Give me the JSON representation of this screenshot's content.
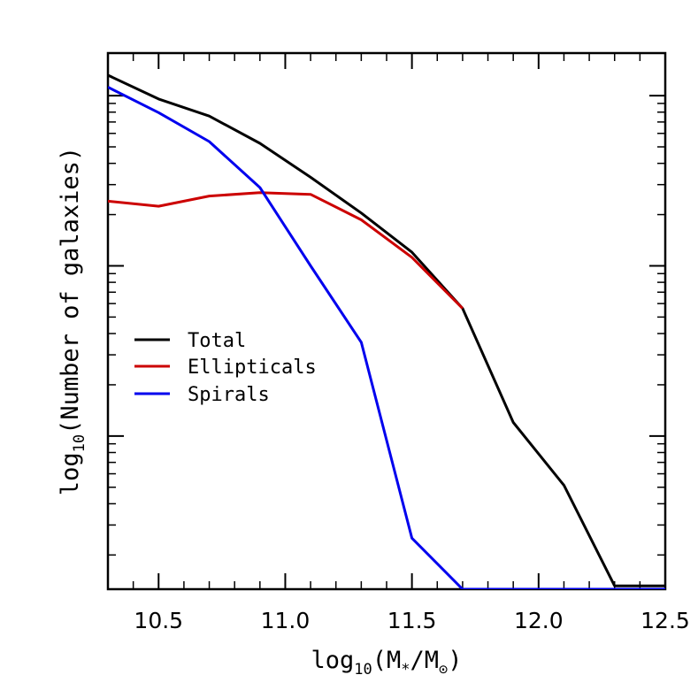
{
  "chart_data": {
    "type": "line",
    "xlabel": {
      "pre": "log",
      "sub": "10",
      "mid": "(M",
      "sub2": "*",
      "mid2": "/M",
      "sub3": "⊙",
      "post": ")"
    },
    "ylabel": {
      "pre": "log",
      "sub": "10",
      "post": "(Number of galaxies)"
    },
    "xlim": [
      10.3,
      12.5
    ],
    "ylim": [
      0.1,
      3.25
    ],
    "y_scale": "log10",
    "y_tick_labels_shown": false,
    "x_ticks": [
      10.5,
      11.0,
      11.5,
      12.0,
      12.5
    ],
    "x_tick_labels": [
      "10.5",
      "11.0",
      "11.5",
      "12.0",
      "12.5"
    ],
    "legend_position": "center-left",
    "series": [
      {
        "name": "Total",
        "color": "#000000",
        "x": [
          10.3,
          10.5,
          10.7,
          10.9,
          11.1,
          11.3,
          11.5,
          11.7,
          11.9,
          12.1,
          12.3,
          12.5
        ],
        "y": [
          3.12,
          2.98,
          2.88,
          2.72,
          2.52,
          2.31,
          2.08,
          1.75,
          1.08,
          0.71,
          0.12,
          0.12
        ]
      },
      {
        "name": "Ellipticals",
        "color": "#cc0000",
        "x": [
          10.3,
          10.5,
          10.7,
          10.9,
          11.1,
          11.3,
          11.5,
          11.7
        ],
        "y": [
          2.38,
          2.35,
          2.41,
          2.43,
          2.42,
          2.27,
          2.05,
          1.75
        ]
      },
      {
        "name": "Spirals",
        "color": "#0000ee",
        "x": [
          10.3,
          10.5,
          10.7,
          10.9,
          11.1,
          11.3,
          11.5,
          11.7,
          12.5
        ],
        "y": [
          3.05,
          2.9,
          2.73,
          2.46,
          2.0,
          1.55,
          0.4,
          0.1,
          0.1
        ]
      }
    ]
  }
}
